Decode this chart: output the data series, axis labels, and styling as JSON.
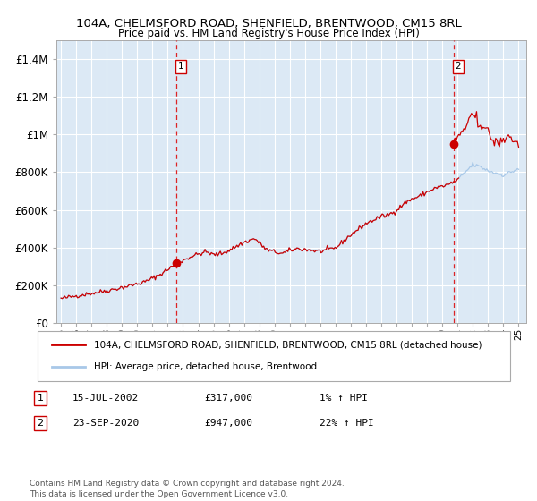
{
  "title1": "104A, CHELMSFORD ROAD, SHENFIELD, BRENTWOOD, CM15 8RL",
  "title2": "Price paid vs. HM Land Registry's House Price Index (HPI)",
  "xlim_start": 1994.7,
  "xlim_end": 2025.5,
  "ylim": [
    0,
    1500000
  ],
  "yticks": [
    0,
    200000,
    400000,
    600000,
    800000,
    1000000,
    1200000,
    1400000
  ],
  "ytick_labels": [
    "£0",
    "£200K",
    "£400K",
    "£600K",
    "£800K",
    "£1M",
    "£1.2M",
    "£1.4M"
  ],
  "xticks": [
    1995,
    1996,
    1997,
    1998,
    1999,
    2000,
    2001,
    2002,
    2003,
    2004,
    2005,
    2006,
    2007,
    2008,
    2009,
    2010,
    2011,
    2012,
    2013,
    2014,
    2015,
    2016,
    2017,
    2018,
    2019,
    2020,
    2021,
    2022,
    2023,
    2024,
    2025
  ],
  "bg_color": "#dce9f5",
  "grid_color": "#ffffff",
  "hpi_line_color": "#a8c8e8",
  "price_line_color": "#cc0000",
  "marker_color": "#cc0000",
  "sale1_x": 2002.54,
  "sale1_y": 317000,
  "sale1_label": "1",
  "sale2_x": 2020.73,
  "sale2_y": 947000,
  "sale2_label": "2",
  "legend_red_label": "104A, CHELMSFORD ROAD, SHENFIELD, BRENTWOOD, CM15 8RL (detached house)",
  "legend_blue_label": "HPI: Average price, detached house, Brentwood",
  "note1_label": "1",
  "note1_date": "15-JUL-2002",
  "note1_price": "£317,000",
  "note1_hpi": "1% ↑ HPI",
  "note2_label": "2",
  "note2_date": "23-SEP-2020",
  "note2_price": "£947,000",
  "note2_hpi": "22% ↑ HPI",
  "footer": "Contains HM Land Registry data © Crown copyright and database right 2024.\nThis data is licensed under the Open Government Licence v3.0."
}
